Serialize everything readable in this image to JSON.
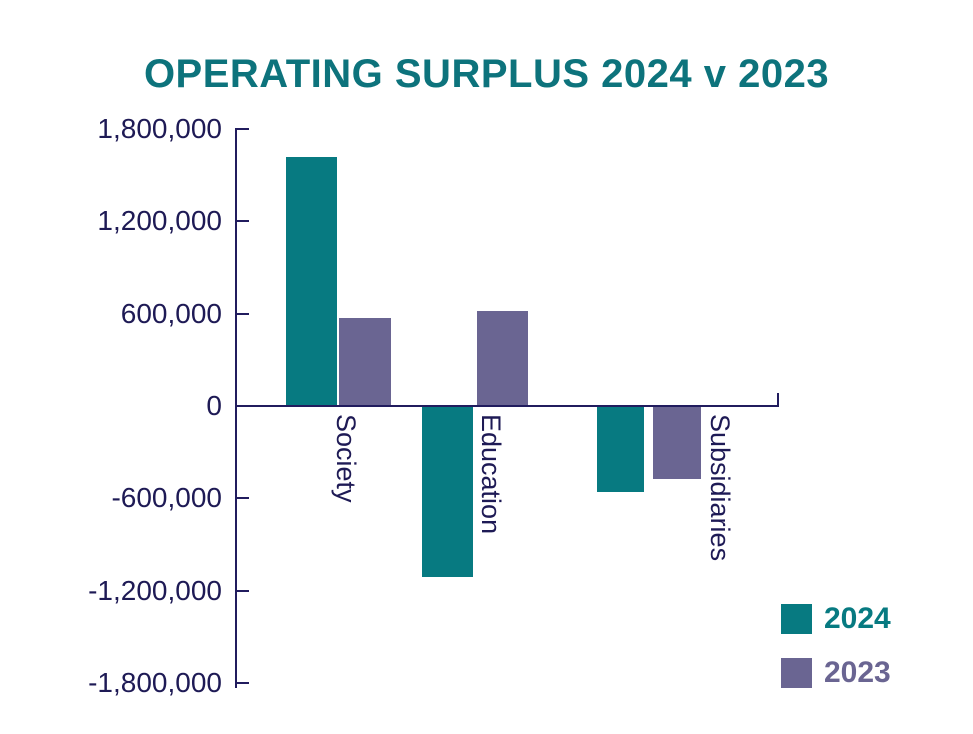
{
  "chart_data": {
    "type": "bar",
    "title": "OPERATING SURPLUS 2024 v 2023",
    "title_color": "#0d737c",
    "axis_color": "#211c5e",
    "label_color": "#1e1a55",
    "categories": [
      "Society",
      "Education",
      "Subsidiaries"
    ],
    "series": [
      {
        "name": "2024",
        "color": "#077a81",
        "values": [
          1620000,
          -1110000,
          -560000
        ]
      },
      {
        "name": "2023",
        "color": "#6a6592",
        "values": [
          575000,
          620000,
          -475000
        ]
      }
    ],
    "ylim": [
      -1800000,
      1800000
    ],
    "y_ticks": [
      1800000,
      1200000,
      600000,
      0,
      -600000,
      -1200000,
      -1800000
    ],
    "y_tick_labels": [
      "1,800,000",
      "1,200,000",
      "600,000",
      "0",
      "-600,000",
      "-1,200,000",
      "-1,800,000"
    ],
    "grid": false,
    "legend_position": "bottom-right",
    "legend": [
      "2024",
      "2023"
    ]
  }
}
